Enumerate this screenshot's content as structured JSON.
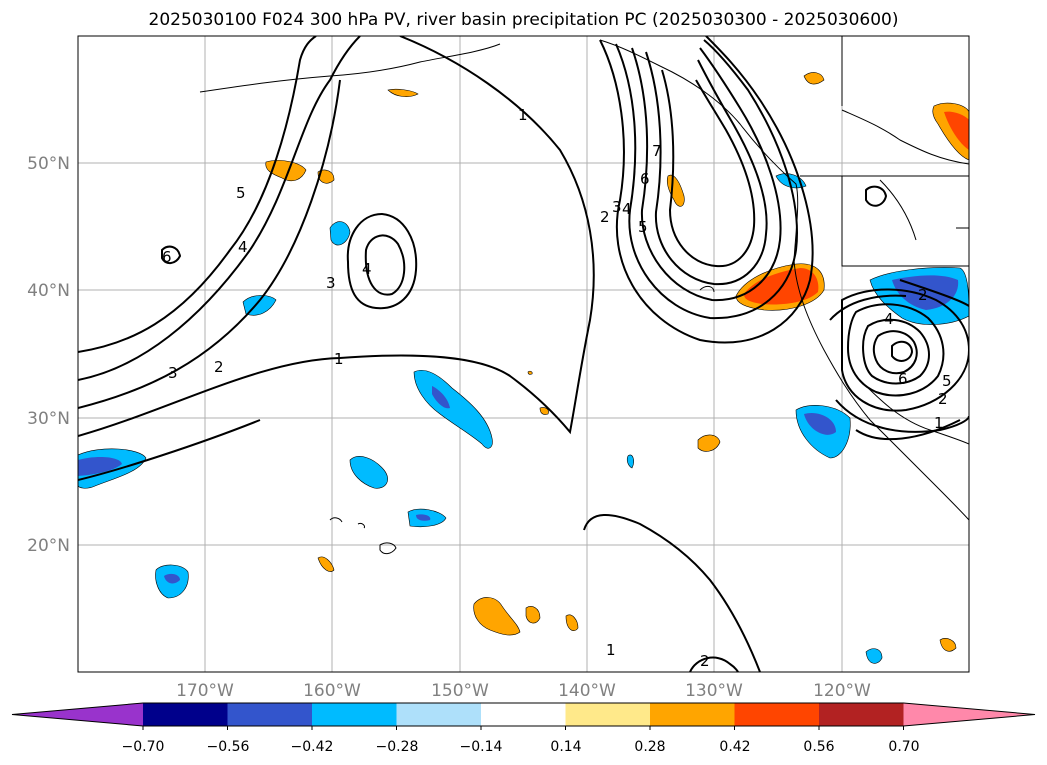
{
  "title": "2025030100 F024 300 hPa PV, river basin precipitation PC (2025030300 - 2025030600)",
  "map": {
    "lon_range": [
      -180,
      -110
    ],
    "lat_range": [
      10,
      60
    ],
    "lat_ticks": [
      "50°N",
      "40°N",
      "30°N",
      "20°N"
    ],
    "lon_ticks": [
      "170°W",
      "160°W",
      "150°W",
      "140°W",
      "130°W",
      "120°W"
    ],
    "contour_labels": [
      "1",
      "1",
      "1",
      "2",
      "2",
      "2",
      "2",
      "3",
      "3",
      "3",
      "4",
      "4",
      "4",
      "4",
      "5",
      "5",
      "5",
      "6",
      "6",
      "6",
      "7",
      "2",
      "1"
    ]
  },
  "colorbar": {
    "colors": [
      "#9933cc",
      "#00008b",
      "#3355cc",
      "#00bbff",
      "#aee0fa",
      "#ffffff",
      "#ffe98a",
      "#ffa500",
      "#ff4500",
      "#b22222",
      "#ff88aa"
    ],
    "ticks": [
      "−0.70",
      "−0.56",
      "−0.42",
      "−0.28",
      "−0.14",
      "0.14",
      "0.28",
      "0.42",
      "0.56",
      "0.70"
    ]
  }
}
